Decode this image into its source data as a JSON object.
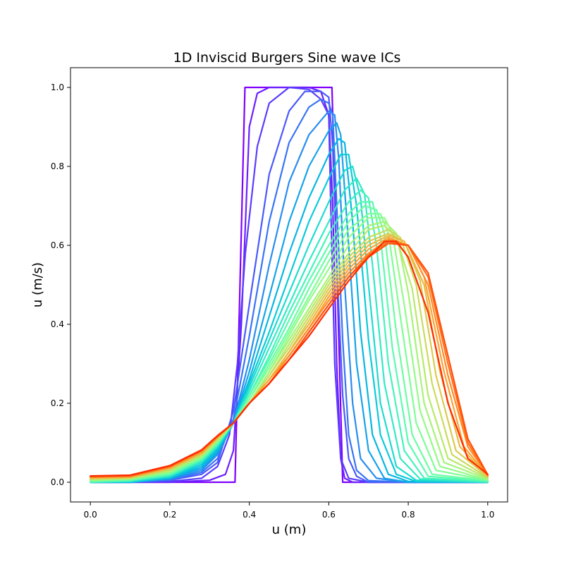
{
  "chart_data": {
    "type": "line",
    "title": "1D Inviscid Burgers Sine wave ICs",
    "xlabel": "u (m)",
    "ylabel": "u (m/s)",
    "xlim": [
      -0.05,
      1.05
    ],
    "ylim": [
      -0.05,
      1.05
    ],
    "xticks": [
      "0.0",
      "0.2",
      "0.4",
      "0.6",
      "0.8",
      "1.0"
    ],
    "yticks": [
      "0.0",
      "0.2",
      "0.4",
      "0.6",
      "0.8",
      "1.0"
    ],
    "grid": false,
    "legend": "none",
    "colormap": "rainbow",
    "series": [
      {
        "color": "#8000ff",
        "x": [
          0.0,
          0.364,
          0.389,
          0.608,
          0.635,
          1.0
        ],
        "y": [
          0.0,
          0.0,
          1.0,
          1.0,
          0.0,
          0.0
        ]
      },
      {
        "color": "#6c1fff",
        "x": [
          0.0,
          0.2,
          0.3,
          0.34,
          0.36,
          0.38,
          0.4,
          0.42,
          0.45,
          0.5,
          0.55,
          0.58,
          0.6,
          0.61,
          0.62,
          0.63,
          0.64,
          0.66,
          0.8,
          1.0
        ],
        "y": [
          0.0,
          0.0,
          0.005,
          0.02,
          0.08,
          0.4,
          0.9,
          0.985,
          1.0,
          1.0,
          1.0,
          0.99,
          0.93,
          0.7,
          0.3,
          0.06,
          0.01,
          0.0,
          0.0,
          0.0
        ]
      },
      {
        "color": "#5a3cfe",
        "x": [
          0.0,
          0.1,
          0.2,
          0.28,
          0.32,
          0.35,
          0.37,
          0.39,
          0.42,
          0.45,
          0.5,
          0.55,
          0.58,
          0.6,
          0.605,
          0.615,
          0.63,
          0.65,
          0.7,
          0.8,
          1.0
        ],
        "y": [
          0.0,
          0.0,
          0.002,
          0.01,
          0.04,
          0.12,
          0.3,
          0.58,
          0.85,
          0.96,
          1.0,
          0.995,
          0.97,
          0.93,
          0.7,
          0.3,
          0.06,
          0.01,
          0.0,
          0.0,
          0.0
        ]
      },
      {
        "color": "#4a58fb",
        "x": [
          0.0,
          0.1,
          0.2,
          0.28,
          0.32,
          0.36,
          0.4,
          0.45,
          0.5,
          0.54,
          0.58,
          0.6,
          0.61,
          0.62,
          0.635,
          0.65,
          0.67,
          0.7,
          0.8,
          1.0
        ],
        "y": [
          0.0,
          0.0,
          0.005,
          0.02,
          0.05,
          0.18,
          0.45,
          0.78,
          0.94,
          0.99,
          0.99,
          0.975,
          0.85,
          0.55,
          0.22,
          0.06,
          0.015,
          0.0,
          0.0,
          0.0
        ]
      },
      {
        "color": "#3873f6",
        "x": [
          0.0,
          0.1,
          0.2,
          0.28,
          0.32,
          0.36,
          0.4,
          0.45,
          0.5,
          0.55,
          0.58,
          0.6,
          0.61,
          0.62,
          0.635,
          0.65,
          0.67,
          0.7,
          0.8,
          1.0
        ],
        "y": [
          0.0,
          0.0,
          0.006,
          0.025,
          0.06,
          0.16,
          0.37,
          0.66,
          0.86,
          0.95,
          0.97,
          0.96,
          0.93,
          0.7,
          0.36,
          0.12,
          0.03,
          0.004,
          0.0,
          0.0
        ]
      },
      {
        "color": "#288cf0",
        "x": [
          0.0,
          0.1,
          0.2,
          0.28,
          0.32,
          0.36,
          0.4,
          0.45,
          0.5,
          0.55,
          0.6,
          0.615,
          0.625,
          0.64,
          0.66,
          0.68,
          0.72,
          0.8,
          1.0
        ],
        "y": [
          0.0,
          0.0,
          0.008,
          0.03,
          0.07,
          0.15,
          0.31,
          0.55,
          0.76,
          0.88,
          0.94,
          0.93,
          0.82,
          0.5,
          0.2,
          0.06,
          0.01,
          0.0,
          0.0
        ]
      },
      {
        "color": "#16a3e9",
        "x": [
          0.0,
          0.1,
          0.2,
          0.28,
          0.32,
          0.36,
          0.4,
          0.45,
          0.5,
          0.55,
          0.6,
          0.62,
          0.63,
          0.65,
          0.67,
          0.7,
          0.74,
          0.8,
          1.0
        ],
        "y": [
          0.0,
          0.0,
          0.01,
          0.035,
          0.075,
          0.15,
          0.28,
          0.47,
          0.66,
          0.8,
          0.89,
          0.91,
          0.88,
          0.6,
          0.3,
          0.08,
          0.01,
          0.0,
          0.0
        ]
      },
      {
        "color": "#06b7e2",
        "x": [
          0.0,
          0.1,
          0.2,
          0.28,
          0.32,
          0.36,
          0.4,
          0.45,
          0.5,
          0.55,
          0.6,
          0.625,
          0.64,
          0.66,
          0.68,
          0.71,
          0.75,
          0.8,
          1.0
        ],
        "y": [
          0.0,
          0.0,
          0.01,
          0.04,
          0.08,
          0.15,
          0.26,
          0.42,
          0.58,
          0.72,
          0.83,
          0.87,
          0.86,
          0.66,
          0.38,
          0.12,
          0.02,
          0.002,
          0.0
        ]
      },
      {
        "color": "#0ccad9",
        "x": [
          0.0,
          0.1,
          0.2,
          0.28,
          0.32,
          0.36,
          0.4,
          0.45,
          0.5,
          0.55,
          0.6,
          0.63,
          0.65,
          0.67,
          0.7,
          0.73,
          0.77,
          0.82,
          1.0
        ],
        "y": [
          0.0,
          0.001,
          0.012,
          0.045,
          0.085,
          0.15,
          0.25,
          0.38,
          0.52,
          0.66,
          0.77,
          0.83,
          0.83,
          0.7,
          0.36,
          0.12,
          0.02,
          0.002,
          0.0
        ]
      },
      {
        "color": "#1edbd0",
        "x": [
          0.0,
          0.1,
          0.2,
          0.28,
          0.32,
          0.36,
          0.4,
          0.45,
          0.5,
          0.55,
          0.6,
          0.64,
          0.66,
          0.68,
          0.7,
          0.73,
          0.77,
          0.82,
          1.0
        ],
        "y": [
          0.0,
          0.002,
          0.014,
          0.05,
          0.09,
          0.15,
          0.24,
          0.36,
          0.48,
          0.6,
          0.71,
          0.79,
          0.8,
          0.72,
          0.5,
          0.2,
          0.04,
          0.005,
          0.0
        ]
      },
      {
        "color": "#32e9c6",
        "x": [
          0.0,
          0.1,
          0.2,
          0.28,
          0.32,
          0.36,
          0.4,
          0.45,
          0.5,
          0.55,
          0.6,
          0.64,
          0.67,
          0.69,
          0.71,
          0.74,
          0.78,
          0.83,
          1.0
        ],
        "y": [
          0.0,
          0.003,
          0.016,
          0.052,
          0.092,
          0.15,
          0.23,
          0.34,
          0.45,
          0.56,
          0.66,
          0.74,
          0.77,
          0.73,
          0.55,
          0.25,
          0.06,
          0.008,
          0.0
        ]
      },
      {
        "color": "#44f3bb",
        "x": [
          0.0,
          0.1,
          0.2,
          0.28,
          0.32,
          0.36,
          0.4,
          0.45,
          0.5,
          0.55,
          0.6,
          0.65,
          0.68,
          0.7,
          0.72,
          0.75,
          0.79,
          0.84,
          1.0
        ],
        "y": [
          0.0,
          0.004,
          0.018,
          0.055,
          0.095,
          0.15,
          0.22,
          0.32,
          0.43,
          0.53,
          0.63,
          0.71,
          0.74,
          0.72,
          0.6,
          0.3,
          0.08,
          0.01,
          0.002
        ]
      },
      {
        "color": "#58fbae",
        "x": [
          0.0,
          0.1,
          0.2,
          0.28,
          0.32,
          0.36,
          0.4,
          0.45,
          0.5,
          0.55,
          0.6,
          0.65,
          0.68,
          0.71,
          0.73,
          0.76,
          0.8,
          0.85,
          1.0
        ],
        "y": [
          0.002,
          0.005,
          0.02,
          0.058,
          0.098,
          0.15,
          0.22,
          0.31,
          0.41,
          0.51,
          0.6,
          0.68,
          0.71,
          0.71,
          0.62,
          0.34,
          0.1,
          0.015,
          0.003
        ]
      },
      {
        "color": "#6afea2",
        "x": [
          0.0,
          0.1,
          0.2,
          0.28,
          0.32,
          0.36,
          0.4,
          0.45,
          0.5,
          0.55,
          0.6,
          0.65,
          0.69,
          0.72,
          0.74,
          0.77,
          0.81,
          0.86,
          1.0
        ],
        "y": [
          0.003,
          0.006,
          0.022,
          0.06,
          0.1,
          0.15,
          0.21,
          0.3,
          0.39,
          0.49,
          0.58,
          0.66,
          0.7,
          0.69,
          0.63,
          0.38,
          0.12,
          0.02,
          0.004
        ]
      },
      {
        "color": "#7efe94",
        "x": [
          0.0,
          0.1,
          0.2,
          0.28,
          0.32,
          0.36,
          0.4,
          0.45,
          0.5,
          0.55,
          0.6,
          0.65,
          0.7,
          0.73,
          0.75,
          0.78,
          0.82,
          0.87,
          1.0
        ],
        "y": [
          0.004,
          0.007,
          0.024,
          0.062,
          0.102,
          0.15,
          0.21,
          0.29,
          0.38,
          0.47,
          0.56,
          0.64,
          0.68,
          0.68,
          0.63,
          0.42,
          0.15,
          0.03,
          0.005
        ]
      },
      {
        "color": "#92fb87",
        "x": [
          0.0,
          0.1,
          0.2,
          0.28,
          0.32,
          0.36,
          0.4,
          0.45,
          0.5,
          0.55,
          0.6,
          0.65,
          0.7,
          0.74,
          0.76,
          0.79,
          0.83,
          0.88,
          1.0
        ],
        "y": [
          0.005,
          0.008,
          0.026,
          0.064,
          0.104,
          0.15,
          0.2,
          0.28,
          0.37,
          0.46,
          0.54,
          0.62,
          0.67,
          0.67,
          0.63,
          0.45,
          0.18,
          0.04,
          0.006
        ]
      },
      {
        "color": "#a6f378",
        "x": [
          0.0,
          0.1,
          0.2,
          0.28,
          0.32,
          0.36,
          0.4,
          0.45,
          0.5,
          0.55,
          0.6,
          0.65,
          0.7,
          0.74,
          0.77,
          0.8,
          0.84,
          0.89,
          1.0
        ],
        "y": [
          0.006,
          0.009,
          0.028,
          0.066,
          0.106,
          0.15,
          0.2,
          0.28,
          0.36,
          0.44,
          0.52,
          0.6,
          0.65,
          0.66,
          0.63,
          0.48,
          0.2,
          0.05,
          0.008
        ]
      },
      {
        "color": "#b8e96b",
        "x": [
          0.0,
          0.1,
          0.2,
          0.28,
          0.32,
          0.36,
          0.4,
          0.45,
          0.5,
          0.55,
          0.6,
          0.65,
          0.7,
          0.74,
          0.77,
          0.81,
          0.85,
          0.9,
          1.0
        ],
        "y": [
          0.007,
          0.01,
          0.03,
          0.068,
          0.108,
          0.15,
          0.2,
          0.27,
          0.35,
          0.43,
          0.51,
          0.58,
          0.64,
          0.65,
          0.62,
          0.49,
          0.22,
          0.06,
          0.01
        ]
      },
      {
        "color": "#cadb5d",
        "x": [
          0.0,
          0.1,
          0.2,
          0.28,
          0.32,
          0.36,
          0.4,
          0.45,
          0.5,
          0.55,
          0.6,
          0.65,
          0.7,
          0.75,
          0.78,
          0.82,
          0.86,
          0.91,
          1.0
        ],
        "y": [
          0.008,
          0.011,
          0.032,
          0.07,
          0.11,
          0.15,
          0.2,
          0.27,
          0.34,
          0.42,
          0.5,
          0.57,
          0.62,
          0.64,
          0.62,
          0.5,
          0.25,
          0.07,
          0.012
        ]
      },
      {
        "color": "#dcca4f",
        "x": [
          0.0,
          0.1,
          0.2,
          0.28,
          0.32,
          0.36,
          0.4,
          0.45,
          0.5,
          0.55,
          0.6,
          0.65,
          0.7,
          0.75,
          0.79,
          0.83,
          0.87,
          0.92,
          1.0
        ],
        "y": [
          0.01,
          0.012,
          0.034,
          0.072,
          0.112,
          0.15,
          0.2,
          0.26,
          0.33,
          0.41,
          0.49,
          0.56,
          0.61,
          0.63,
          0.61,
          0.51,
          0.27,
          0.08,
          0.014
        ]
      },
      {
        "color": "#ecb741",
        "x": [
          0.0,
          0.1,
          0.2,
          0.28,
          0.32,
          0.36,
          0.4,
          0.45,
          0.5,
          0.55,
          0.6,
          0.65,
          0.7,
          0.75,
          0.79,
          0.84,
          0.88,
          0.93,
          1.0
        ],
        "y": [
          0.011,
          0.013,
          0.036,
          0.074,
          0.113,
          0.15,
          0.2,
          0.26,
          0.33,
          0.4,
          0.48,
          0.55,
          0.6,
          0.625,
          0.61,
          0.5,
          0.28,
          0.09,
          0.015
        ]
      },
      {
        "color": "#f9a334",
        "x": [
          0.0,
          0.1,
          0.2,
          0.28,
          0.32,
          0.36,
          0.4,
          0.45,
          0.5,
          0.55,
          0.6,
          0.65,
          0.7,
          0.75,
          0.8,
          0.84,
          0.89,
          0.94,
          1.0
        ],
        "y": [
          0.012,
          0.014,
          0.037,
          0.076,
          0.114,
          0.15,
          0.2,
          0.26,
          0.32,
          0.39,
          0.47,
          0.54,
          0.59,
          0.62,
          0.6,
          0.52,
          0.28,
          0.09,
          0.016
        ]
      },
      {
        "color": "#ff8b26",
        "x": [
          0.0,
          0.1,
          0.2,
          0.28,
          0.32,
          0.36,
          0.4,
          0.45,
          0.5,
          0.55,
          0.6,
          0.65,
          0.7,
          0.75,
          0.8,
          0.85,
          0.9,
          0.95,
          1.0
        ],
        "y": [
          0.013,
          0.015,
          0.038,
          0.078,
          0.115,
          0.15,
          0.2,
          0.25,
          0.32,
          0.39,
          0.46,
          0.53,
          0.58,
          0.615,
          0.6,
          0.5,
          0.27,
          0.09,
          0.018
        ]
      },
      {
        "color": "#ff6f19",
        "x": [
          0.0,
          0.1,
          0.2,
          0.28,
          0.32,
          0.36,
          0.4,
          0.45,
          0.5,
          0.55,
          0.6,
          0.65,
          0.7,
          0.75,
          0.8,
          0.85,
          0.9,
          0.95,
          1.0
        ],
        "y": [
          0.014,
          0.016,
          0.04,
          0.08,
          0.116,
          0.15,
          0.2,
          0.25,
          0.31,
          0.38,
          0.45,
          0.52,
          0.575,
          0.61,
          0.6,
          0.52,
          0.3,
          0.1,
          0.018
        ]
      },
      {
        "color": "#ff500d",
        "x": [
          0.0,
          0.1,
          0.2,
          0.28,
          0.32,
          0.36,
          0.4,
          0.45,
          0.5,
          0.55,
          0.6,
          0.65,
          0.7,
          0.75,
          0.8,
          0.85,
          0.9,
          0.95,
          1.0
        ],
        "y": [
          0.015,
          0.017,
          0.041,
          0.081,
          0.117,
          0.15,
          0.2,
          0.25,
          0.31,
          0.38,
          0.45,
          0.52,
          0.57,
          0.605,
          0.6,
          0.53,
          0.32,
          0.11,
          0.019
        ]
      },
      {
        "color": "#ff2c00",
        "x": [
          0.0,
          0.1,
          0.2,
          0.28,
          0.32,
          0.36,
          0.4,
          0.45,
          0.5,
          0.55,
          0.6,
          0.65,
          0.7,
          0.74,
          0.77,
          0.8,
          0.85,
          0.9,
          0.95,
          1.0
        ],
        "y": [
          0.016,
          0.018,
          0.042,
          0.082,
          0.118,
          0.15,
          0.2,
          0.25,
          0.31,
          0.37,
          0.44,
          0.51,
          0.57,
          0.61,
          0.61,
          0.57,
          0.43,
          0.2,
          0.06,
          0.02
        ]
      }
    ]
  }
}
